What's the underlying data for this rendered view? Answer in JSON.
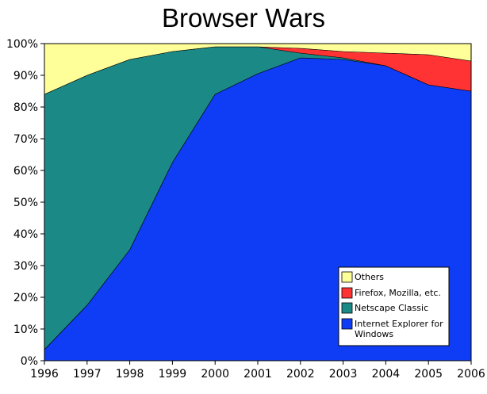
{
  "chart_data": {
    "type": "area",
    "stacked": true,
    "title": "Browser Wars",
    "xlabel": "",
    "ylabel": "",
    "x": [
      1996,
      1997,
      1998,
      1999,
      2000,
      2001,
      2002,
      2003,
      2004,
      2005,
      2006
    ],
    "ylim": [
      0,
      100
    ],
    "yticks": [
      0,
      10,
      20,
      30,
      40,
      50,
      60,
      70,
      80,
      90,
      100
    ],
    "ytick_labels": [
      "0%",
      "10%",
      "20%",
      "30%",
      "40%",
      "50%",
      "60%",
      "70%",
      "80%",
      "90%",
      "100%"
    ],
    "grid": false,
    "legend_position": "bottom-right",
    "series": [
      {
        "name": "Internet Explorer for Windows",
        "color": "#0f3cf5",
        "values": [
          3.5,
          17.5,
          35,
          62.5,
          84,
          90.5,
          95.5,
          95,
          93,
          87,
          85
        ]
      },
      {
        "name": "Netscape Classic",
        "color": "#1b8a87",
        "values": [
          80.5,
          72.5,
          60,
          35,
          15,
          8.5,
          1.5,
          0.5,
          0,
          0,
          0
        ]
      },
      {
        "name": "Firefox, Mozilla, etc.",
        "color": "#ff3333",
        "values": [
          0,
          0,
          0,
          0,
          0,
          0,
          1.5,
          2,
          4,
          9.5,
          9.5
        ]
      },
      {
        "name": "Others",
        "color": "#ffff99",
        "values": [
          16,
          10,
          5,
          2.5,
          1,
          1,
          1.5,
          2.5,
          3,
          3.5,
          5.5
        ]
      }
    ],
    "legend_order": [
      "Others",
      "Firefox, Mozilla, etc.",
      "Netscape Classic",
      "Internet Explorer for Windows"
    ]
  }
}
